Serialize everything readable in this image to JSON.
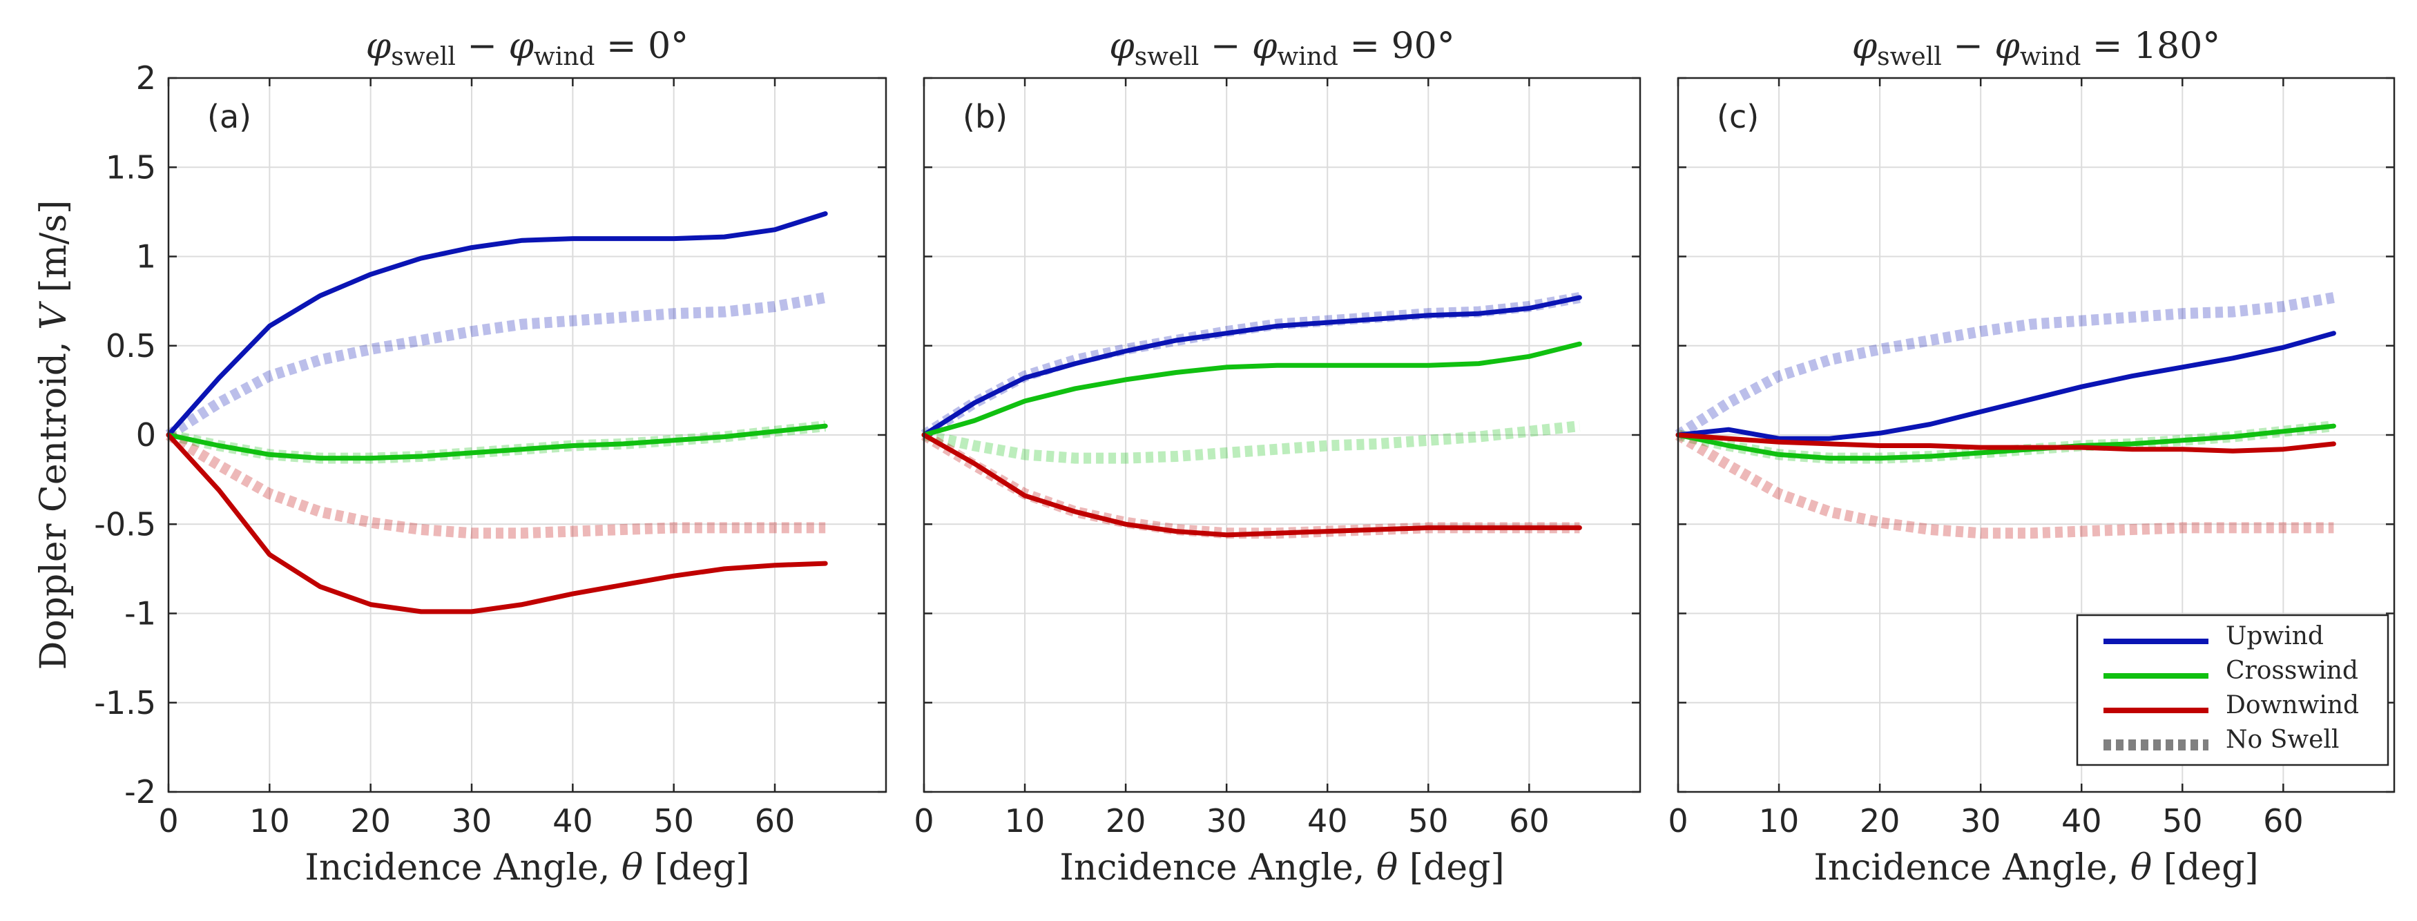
{
  "chart_data": {
    "type": "line",
    "y_axis": {
      "label_main": "Doppler Centroid, ",
      "label_var": "V",
      "label_unit": " [m/s]",
      "lim": [
        -2,
        2
      ],
      "ticks": [
        2,
        1.5,
        1,
        0.5,
        0,
        -0.5,
        -1,
        -1.5,
        -2
      ],
      "tick_labels": [
        "2",
        "1.5",
        "1",
        "0.5",
        "0",
        "-0.5",
        "-1",
        "-1.5",
        "-2"
      ]
    },
    "x_axis": {
      "label_main": "Incidence Angle, ",
      "label_var": "θ",
      "label_unit": " [deg]",
      "lim": [
        0,
        71
      ],
      "ticks": [
        0,
        10,
        20,
        30,
        40,
        50,
        60
      ],
      "tick_labels": [
        "0",
        "10",
        "20",
        "30",
        "40",
        "50",
        "60"
      ]
    },
    "x": [
      0,
      5,
      10,
      15,
      20,
      25,
      30,
      35,
      40,
      45,
      50,
      55,
      60,
      65
    ],
    "colors": {
      "upwind": "#0a14b4",
      "crosswind": "#10c010",
      "downwind": "#c00000",
      "noswell": "#808080"
    },
    "legend": {
      "location": "bottom-right",
      "entries": [
        "Upwind",
        "Crosswind",
        "Downwind",
        "No Swell"
      ]
    },
    "no_swell": {
      "upwind": [
        0,
        0.18,
        0.33,
        0.42,
        0.48,
        0.53,
        0.58,
        0.62,
        0.64,
        0.66,
        0.68,
        0.69,
        0.72,
        0.77
      ],
      "crosswind": [
        0,
        -0.06,
        -0.11,
        -0.13,
        -0.13,
        -0.12,
        -0.1,
        -0.08,
        -0.06,
        -0.05,
        -0.03,
        -0.01,
        0.02,
        0.05
      ],
      "downwind": [
        0,
        -0.17,
        -0.33,
        -0.43,
        -0.49,
        -0.53,
        -0.55,
        -0.55,
        -0.54,
        -0.53,
        -0.52,
        -0.52,
        -0.52,
        -0.52
      ]
    },
    "panels": [
      {
        "label": "(a)",
        "title_prefix": "φ",
        "title_sub1": "swell",
        "title_minus": " − ",
        "title_phi2": "φ",
        "title_sub2": "wind",
        "title_value": " = 0°",
        "series": [
          {
            "name": "Upwind",
            "key": "upwind",
            "values": [
              0,
              0.32,
              0.61,
              0.78,
              0.9,
              0.99,
              1.05,
              1.09,
              1.1,
              1.1,
              1.1,
              1.11,
              1.15,
              1.24
            ]
          },
          {
            "name": "Crosswind",
            "key": "crosswind",
            "values": [
              0,
              -0.06,
              -0.11,
              -0.13,
              -0.13,
              -0.12,
              -0.1,
              -0.08,
              -0.06,
              -0.05,
              -0.03,
              -0.01,
              0.02,
              0.05
            ]
          },
          {
            "name": "Downwind",
            "key": "downwind",
            "values": [
              0,
              -0.31,
              -0.67,
              -0.85,
              -0.95,
              -0.99,
              -0.99,
              -0.95,
              -0.89,
              -0.84,
              -0.79,
              -0.75,
              -0.73,
              -0.72
            ]
          }
        ]
      },
      {
        "label": "(b)",
        "title_prefix": "φ",
        "title_sub1": "swell",
        "title_minus": " − ",
        "title_phi2": "φ",
        "title_sub2": "wind",
        "title_value": " = 90°",
        "series": [
          {
            "name": "Upwind",
            "key": "upwind",
            "values": [
              0,
              0.18,
              0.32,
              0.4,
              0.47,
              0.53,
              0.57,
              0.61,
              0.63,
              0.65,
              0.67,
              0.68,
              0.71,
              0.77
            ]
          },
          {
            "name": "Crosswind",
            "key": "crosswind",
            "values": [
              0,
              0.08,
              0.19,
              0.26,
              0.31,
              0.35,
              0.38,
              0.39,
              0.39,
              0.39,
              0.39,
              0.4,
              0.44,
              0.51
            ]
          },
          {
            "name": "Downwind",
            "key": "downwind",
            "values": [
              0,
              -0.16,
              -0.34,
              -0.43,
              -0.5,
              -0.54,
              -0.56,
              -0.55,
              -0.54,
              -0.53,
              -0.52,
              -0.52,
              -0.52,
              -0.52
            ]
          }
        ]
      },
      {
        "label": "(c)",
        "title_prefix": "φ",
        "title_sub1": "swell",
        "title_minus": " − ",
        "title_phi2": "φ",
        "title_sub2": "wind",
        "title_value": " = 180°",
        "series": [
          {
            "name": "Upwind",
            "key": "upwind",
            "values": [
              0,
              0.03,
              -0.02,
              -0.02,
              0.01,
              0.06,
              0.13,
              0.2,
              0.27,
              0.33,
              0.38,
              0.43,
              0.49,
              0.57
            ]
          },
          {
            "name": "Crosswind",
            "key": "crosswind",
            "values": [
              0,
              -0.06,
              -0.11,
              -0.13,
              -0.13,
              -0.12,
              -0.1,
              -0.08,
              -0.06,
              -0.05,
              -0.03,
              -0.01,
              0.02,
              0.05
            ]
          },
          {
            "name": "Downwind",
            "key": "downwind",
            "values": [
              0,
              -0.02,
              -0.04,
              -0.05,
              -0.06,
              -0.06,
              -0.07,
              -0.07,
              -0.07,
              -0.08,
              -0.08,
              -0.09,
              -0.08,
              -0.05
            ]
          }
        ]
      }
    ]
  }
}
